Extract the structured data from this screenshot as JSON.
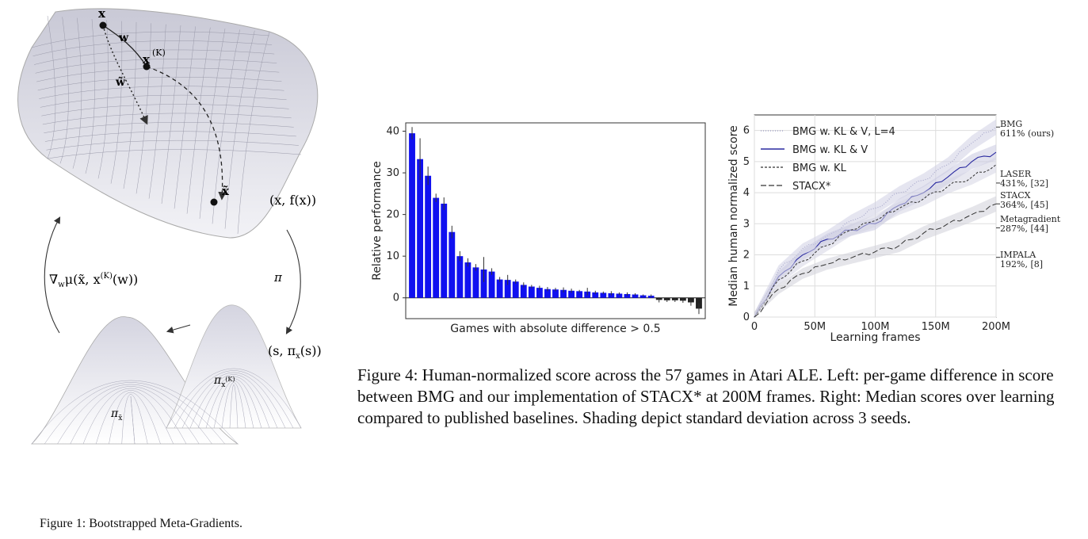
{
  "figure1": {
    "caption": "Figure 1: Bootstrapped Meta-Gradients.",
    "labels": {
      "x": "x",
      "w": "w",
      "xK": "x",
      "xK_sup": "(K)",
      "wt": "w̃",
      "xt": "x̃",
      "xfx": "(x, f(x))",
      "grad": "∇",
      "grad_sub": "w",
      "grad_rest": "μ(x̃, x",
      "grad_sup": "(K)",
      "grad_end": "(w))",
      "pi": "π",
      "spi": "(s, π",
      "spi_sub": "x",
      "spi_end": "(s))",
      "pixK": "π",
      "pixK_sub": "x",
      "pixK_sup": "(K)",
      "pixt": "π",
      "pixt_sub": "x̃"
    }
  },
  "figure4": {
    "caption": "Figure 4: Human-normalized score across the 57 games in Atari ALE. Left: per-game difference in score between BMG and our implementation of STACX* at 200M frames. Right: Median scores over learning compared to published baselines. Shading depict standard deviation across 3 seeds."
  },
  "chart_data": [
    {
      "type": "bar",
      "ylabel": "Relative performance",
      "xlabel": "Games with absolute difference > 0.5",
      "ylim": [
        -5,
        42
      ],
      "yticks": [
        "40",
        "30",
        "20",
        "10",
        "0"
      ],
      "values": [
        39.5,
        33.3,
        29.3,
        24.0,
        22.6,
        15.8,
        10.0,
        8.5,
        7.3,
        6.8,
        6.3,
        4.4,
        4.3,
        3.9,
        3.1,
        2.7,
        2.4,
        2.1,
        2.0,
        1.9,
        1.7,
        1.6,
        1.5,
        1.3,
        1.2,
        1.1,
        1.0,
        0.9,
        0.8,
        0.6,
        0.5,
        -0.5,
        -0.6,
        -0.6,
        -0.7,
        -1.1,
        -2.6
      ],
      "errors": [
        1.5,
        5.0,
        2.2,
        1.0,
        1.5,
        1.5,
        1.2,
        1.0,
        0.8,
        3.0,
        0.8,
        0.6,
        1.2,
        0.5,
        0.6,
        0.4,
        0.5,
        0.5,
        0.4,
        0.6,
        0.5,
        0.3,
        0.9,
        0.4,
        0.3,
        0.5,
        0.3,
        0.4,
        0.3,
        0.2,
        0.3,
        0.6,
        0.4,
        0.4,
        0.5,
        0.8,
        1.3
      ],
      "colors": {
        "positive": "#1010f0",
        "negative": "#222222"
      }
    },
    {
      "type": "line",
      "ylabel": "Median human normalized score",
      "xlabel": "Learning frames",
      "xlim": [
        0,
        200
      ],
      "ylim": [
        0,
        6.5
      ],
      "xticks": [
        "0",
        "50M",
        "100M",
        "150M",
        "200M"
      ],
      "yticks": [
        "0",
        "1",
        "2",
        "3",
        "4",
        "5",
        "6"
      ],
      "grid": true,
      "legend_position": "top-left",
      "series": [
        {
          "name": "BMG w. KL & V, L=4",
          "x": [
            0,
            20,
            40,
            60,
            80,
            100,
            120,
            140,
            160,
            180,
            200
          ],
          "y": [
            0,
            1.5,
            2.2,
            2.6,
            3.1,
            3.5,
            4.0,
            4.4,
            4.9,
            5.6,
            6.11
          ]
        },
        {
          "name": "BMG w. KL & V",
          "x": [
            0,
            20,
            40,
            60,
            80,
            100,
            120,
            140,
            160,
            180,
            200
          ],
          "y": [
            0,
            1.3,
            2.0,
            2.5,
            2.8,
            3.0,
            3.6,
            4.0,
            4.5,
            5.0,
            5.3
          ]
        },
        {
          "name": "BMG w. KL",
          "x": [
            0,
            20,
            40,
            60,
            80,
            100,
            120,
            140,
            160,
            180,
            200
          ],
          "y": [
            0,
            1.2,
            1.8,
            2.3,
            2.8,
            3.1,
            3.5,
            3.8,
            4.2,
            4.5,
            4.9
          ]
        },
        {
          "name": "STACX*",
          "x": [
            0,
            20,
            40,
            60,
            80,
            100,
            120,
            140,
            160,
            180,
            200
          ],
          "y": [
            0,
            0.9,
            1.4,
            1.7,
            1.9,
            2.1,
            2.3,
            2.7,
            3.0,
            3.3,
            3.64
          ]
        }
      ],
      "right_annotations": [
        {
          "lines": [
            "BMG",
            "611% (ours)"
          ],
          "value": 6.11
        },
        {
          "lines": [
            "LASER",
            "431%, [32]"
          ],
          "value": 4.31
        },
        {
          "lines": [
            "STACX",
            "364%, [45]"
          ],
          "value": 3.64
        },
        {
          "lines": [
            "Metagradient",
            "287%, [44]"
          ],
          "value": 2.87
        },
        {
          "lines": [
            "IMPALA",
            "192%, [8]"
          ],
          "value": 1.92
        }
      ]
    }
  ]
}
